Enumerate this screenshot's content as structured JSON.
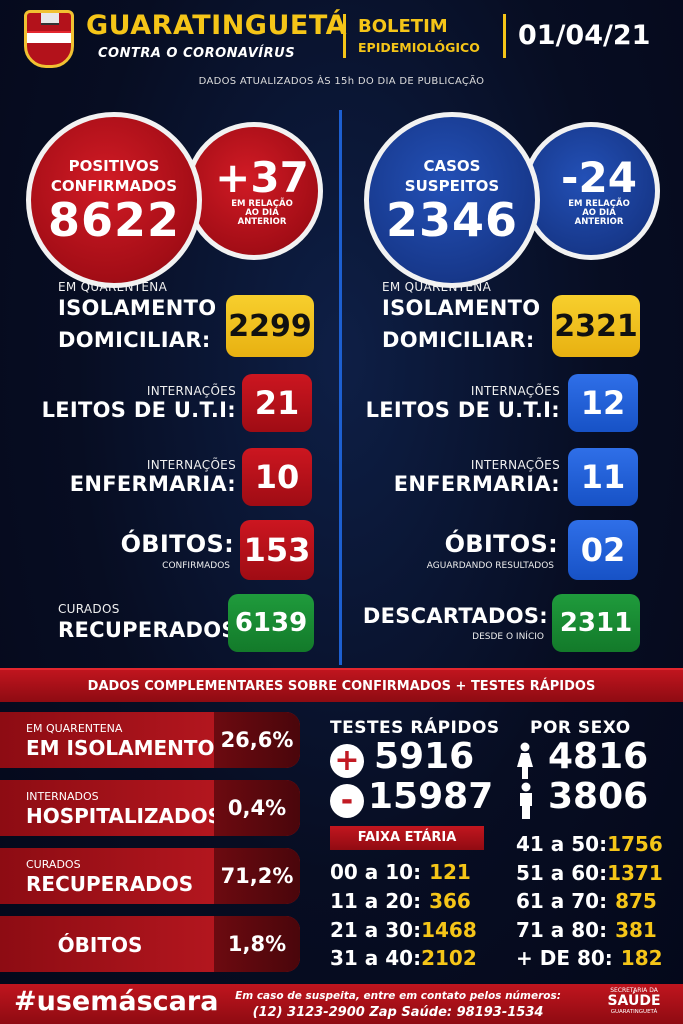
{
  "header": {
    "city": "GUARATINGUETÁ",
    "tagline": "CONTRA O CORONAVÍRUS",
    "bulletin_1": "BOLETIM",
    "bulletin_2": "EPIDEMIOLÓGICO",
    "date": "01/04/21",
    "updated_note": "DADOS ATUALIZADOS ÀS 15h DO DIA DE PUBLICAÇÃO"
  },
  "confirmed": {
    "label_1": "POSITIVOS",
    "label_2": "CONFIRMADOS",
    "value": "8622",
    "delta": "+37",
    "delta_note_1": "EM RELAÇÃO",
    "delta_note_2": "AO DIA",
    "delta_note_3": "ANTERIOR",
    "quarantine_small": "EM QUARENTENA",
    "quarantine_big_1": "ISOLAMENTO",
    "quarantine_big_2": "DOMICILIAR:",
    "quarantine_value": "2299",
    "icu_small": "INTERNAÇÕES",
    "icu_big": "LEITOS DE U.T.I:",
    "icu_value": "21",
    "ward_small": "INTERNAÇÕES",
    "ward_big": "ENFERMARIA:",
    "ward_value": "10",
    "deaths_big": "ÓBITOS:",
    "deaths_small": "CONFIRMADOS",
    "deaths_value": "153",
    "recovered_small": "CURADOS",
    "recovered_big": "RECUPERADOS:",
    "recovered_value": "6139"
  },
  "suspected": {
    "label_1": "CASOS",
    "label_2": "SUSPEITOS",
    "value": "2346",
    "delta": "-24",
    "delta_note_1": "EM RELAÇÃO",
    "delta_note_2": "AO DIA",
    "delta_note_3": "ANTERIOR",
    "quarantine_small": "EM QUARENTENA",
    "quarantine_big_1": "ISOLAMENTO",
    "quarantine_big_2": "DOMICILIAR:",
    "quarantine_value": "2321",
    "icu_small": "INTERNAÇÕES",
    "icu_big": "LEITOS DE U.T.I:",
    "icu_value": "12",
    "ward_small": "INTERNAÇÕES",
    "ward_big": "ENFERMARIA:",
    "ward_value": "11",
    "deaths_big": "ÓBITOS:",
    "deaths_small": "AGUARDANDO RESULTADOS",
    "deaths_value": "02",
    "discarded_big": "DESCARTADOS:",
    "discarded_small": "DESDE O INÍCIO",
    "discarded_value": "2311"
  },
  "complement": {
    "title": "DADOS COMPLEMENTARES SOBRE CONFIRMADOS + TESTES RÁPIDOS",
    "rows": [
      {
        "small": "EM QUARENTENA",
        "big": "EM ISOLAMENTO",
        "pct": "26,6%"
      },
      {
        "small": "INTERNADOS",
        "big": "HOSPITALIZADOS",
        "pct": "0,4%"
      },
      {
        "small": "CURADOS",
        "big": "RECUPERADOS",
        "pct": "71,2%"
      },
      {
        "small": "",
        "big": "ÓBITOS",
        "pct": "1,8%"
      }
    ]
  },
  "rapid_tests": {
    "title": "TESTES RÁPIDOS",
    "positive_symbol": "+",
    "positive": "5916",
    "negative_symbol": "-",
    "negative": "15987"
  },
  "by_sex": {
    "title": "POR SEXO",
    "female": "4816",
    "male": "3806"
  },
  "age_groups": {
    "title": "FAIXA ETÁRIA",
    "left": [
      {
        "range": "00 a 10:",
        "value": "121"
      },
      {
        "range": "11 a 20:",
        "value": "366"
      },
      {
        "range": "21 a 30:",
        "value": "1468"
      },
      {
        "range": "31 a 40:",
        "value": "2102"
      }
    ],
    "right": [
      {
        "range": "41 a 50:",
        "value": "1756"
      },
      {
        "range": "51 a 60:",
        "value": "1371"
      },
      {
        "range": "61 a 70:",
        "value": "875"
      },
      {
        "range": "71 a 80:",
        "value": "381"
      },
      {
        "range": "+ DE 80:",
        "value": "182"
      }
    ]
  },
  "footer": {
    "hashtag": "#usemáscara",
    "contact_1": "Em caso de suspeita, entre em contato pelos números:",
    "contact_2": "(12) 3123-2900 Zap Saúde: 98193-1534",
    "dept_1": "SECRETARIA DA",
    "dept_2": "SAÚDE",
    "dept_3": "GUARATINGUETÁ"
  },
  "colors": {
    "accent_yellow": "#f5c518",
    "red": "#c21a23",
    "blue": "#1752c6",
    "green": "#137a2a",
    "background": "#070d22"
  }
}
